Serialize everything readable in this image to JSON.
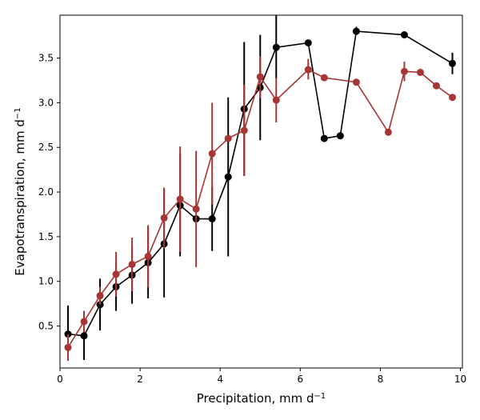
{
  "chart_data": {
    "type": "line",
    "title": "",
    "xlabel": {
      "text": "Precipitation,  mm d",
      "sup": "−1"
    },
    "ylabel": {
      "text": "Evapotranspiration,  mm d",
      "sup": "−1"
    },
    "xlim": [
      0,
      10.05
    ],
    "ylim": [
      0.03,
      3.98
    ],
    "xticks": [
      0,
      2,
      4,
      6,
      8,
      10
    ],
    "yticks": [
      0.5,
      1.0,
      1.5,
      2.0,
      2.5,
      3.0,
      3.5
    ],
    "xtick_labels": [
      "0",
      "2",
      "4",
      "6",
      "8",
      "10"
    ],
    "ytick_labels": [
      "0.5",
      "1.0",
      "1.5",
      "2.0",
      "2.5",
      "3.0",
      "3.5"
    ],
    "grid": false,
    "legend": "none",
    "series": [
      {
        "color": "#000000",
        "points": [
          {
            "x": 0.2,
            "y": 0.41,
            "lo": 0.13,
            "hi": 0.73
          },
          {
            "x": 0.6,
            "y": 0.39,
            "lo": 0.12,
            "hi": 0.66
          },
          {
            "x": 1.0,
            "y": 0.74,
            "lo": 0.45,
            "hi": 1.03
          },
          {
            "x": 1.4,
            "y": 0.94,
            "lo": 0.67,
            "hi": 1.22
          },
          {
            "x": 1.8,
            "y": 1.07,
            "lo": 0.75,
            "hi": 1.39
          },
          {
            "x": 2.2,
            "y": 1.21,
            "lo": 0.81,
            "hi": 1.61
          },
          {
            "x": 2.6,
            "y": 1.42,
            "lo": 0.82,
            "hi": 2.03
          },
          {
            "x": 3.0,
            "y": 1.85,
            "lo": 1.28,
            "hi": 2.43
          },
          {
            "x": 3.4,
            "y": 1.7,
            "lo": 1.7,
            "hi": 1.7
          },
          {
            "x": 3.8,
            "y": 1.7,
            "lo": 1.34,
            "hi": 2.06
          },
          {
            "x": 4.2,
            "y": 2.17,
            "lo": 1.28,
            "hi": 3.06
          },
          {
            "x": 4.6,
            "y": 2.93,
            "lo": 2.18,
            "hi": 3.68
          },
          {
            "x": 5.0,
            "y": 3.17,
            "lo": 2.58,
            "hi": 3.76
          },
          {
            "x": 5.4,
            "y": 3.62,
            "lo": 3.27,
            "hi": 3.98
          },
          {
            "x": 6.2,
            "y": 3.67,
            "lo": 3.67,
            "hi": 3.67
          },
          {
            "x": 6.6,
            "y": 2.6,
            "lo": 2.6,
            "hi": 2.6
          },
          {
            "x": 7.0,
            "y": 2.63,
            "lo": 2.63,
            "hi": 2.63
          },
          {
            "x": 7.4,
            "y": 3.8,
            "lo": 3.76,
            "hi": 3.85
          },
          {
            "x": 8.6,
            "y": 3.76,
            "lo": 3.76,
            "hi": 3.76
          },
          {
            "x": 9.8,
            "y": 3.44,
            "lo": 3.32,
            "hi": 3.56
          }
        ]
      },
      {
        "color": "#a83434",
        "points": [
          {
            "x": 0.2,
            "y": 0.26,
            "lo": 0.11,
            "hi": 0.41
          },
          {
            "x": 0.6,
            "y": 0.55,
            "lo": 0.43,
            "hi": 0.67
          },
          {
            "x": 1.0,
            "y": 0.84,
            "lo": 0.74,
            "hi": 0.94
          },
          {
            "x": 1.4,
            "y": 1.08,
            "lo": 0.83,
            "hi": 1.33
          },
          {
            "x": 1.8,
            "y": 1.19,
            "lo": 0.89,
            "hi": 1.49
          },
          {
            "x": 2.2,
            "y": 1.28,
            "lo": 0.93,
            "hi": 1.63
          },
          {
            "x": 2.6,
            "y": 1.71,
            "lo": 1.37,
            "hi": 2.05
          },
          {
            "x": 3.0,
            "y": 1.92,
            "lo": 1.33,
            "hi": 2.51
          },
          {
            "x": 3.4,
            "y": 1.81,
            "lo": 1.16,
            "hi": 2.46
          },
          {
            "x": 3.8,
            "y": 2.43,
            "lo": 1.86,
            "hi": 3.0
          },
          {
            "x": 4.2,
            "y": 2.6,
            "lo": 2.6,
            "hi": 2.6
          },
          {
            "x": 4.6,
            "y": 2.69,
            "lo": 2.18,
            "hi": 3.2
          },
          {
            "x": 5.0,
            "y": 3.29,
            "lo": 3.05,
            "hi": 3.52
          },
          {
            "x": 5.4,
            "y": 3.03,
            "lo": 2.78,
            "hi": 3.28
          },
          {
            "x": 6.2,
            "y": 3.37,
            "lo": 3.26,
            "hi": 3.49
          },
          {
            "x": 6.6,
            "y": 3.28,
            "lo": 3.28,
            "hi": 3.28
          },
          {
            "x": 7.4,
            "y": 3.23,
            "lo": 3.23,
            "hi": 3.23
          },
          {
            "x": 8.2,
            "y": 2.67,
            "lo": 2.67,
            "hi": 2.67
          },
          {
            "x": 8.6,
            "y": 3.35,
            "lo": 3.24,
            "hi": 3.46
          },
          {
            "x": 9.0,
            "y": 3.34,
            "lo": 3.34,
            "hi": 3.34
          },
          {
            "x": 9.4,
            "y": 3.19,
            "lo": 3.19,
            "hi": 3.19
          },
          {
            "x": 9.8,
            "y": 3.06,
            "lo": 3.06,
            "hi": 3.06
          }
        ]
      }
    ]
  }
}
